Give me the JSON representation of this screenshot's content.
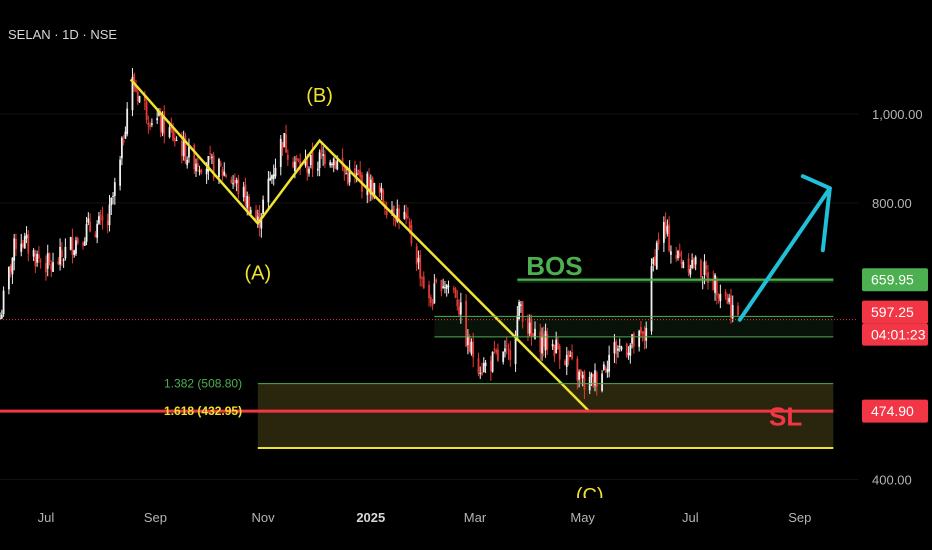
{
  "symbol": "SELAN · 1D · NSE",
  "chart_data": {
    "type": "candlestick",
    "y_scale": "log",
    "ylim": [
      382,
      1330
    ],
    "y_ticks": [
      {
        "value": 1000,
        "label": "1,000.00"
      },
      {
        "value": 800,
        "label": "800.00"
      },
      {
        "value": 400,
        "label": "400.00"
      }
    ],
    "x_ticks": [
      {
        "date": "2024-07-01",
        "label": "Jul",
        "bold": false
      },
      {
        "date": "2024-09-01",
        "label": "Sep",
        "bold": false
      },
      {
        "date": "2024-11-01",
        "label": "Nov",
        "bold": false
      },
      {
        "date": "2025-01-01",
        "label": "2025",
        "bold": true
      },
      {
        "date": "2025-03-01",
        "label": "Mar",
        "bold": false
      },
      {
        "date": "2025-05-01",
        "label": "May",
        "bold": false
      },
      {
        "date": "2025-07-01",
        "label": "Jul",
        "bold": false
      },
      {
        "date": "2025-09-01",
        "label": "Sep",
        "bold": false
      }
    ],
    "price_path": [
      [
        "2024-06-05",
        600
      ],
      [
        "2024-06-15",
        740
      ],
      [
        "2024-06-25",
        700
      ],
      [
        "2024-07-05",
        680
      ],
      [
        "2024-07-15",
        720
      ],
      [
        "2024-07-25",
        750
      ],
      [
        "2024-08-05",
        760
      ],
      [
        "2024-08-12",
        880
      ],
      [
        "2024-08-18",
        1090
      ],
      [
        "2024-08-28",
        1000
      ],
      [
        "2024-09-08",
        960
      ],
      [
        "2024-09-20",
        900
      ],
      [
        "2024-10-01",
        880
      ],
      [
        "2024-10-12",
        860
      ],
      [
        "2024-10-22",
        810
      ],
      [
        "2024-10-29",
        760
      ],
      [
        "2024-11-06",
        860
      ],
      [
        "2024-11-12",
        940
      ],
      [
        "2024-11-20",
        880
      ],
      [
        "2024-11-30",
        880
      ],
      [
        "2024-12-08",
        910
      ],
      [
        "2024-12-18",
        860
      ],
      [
        "2024-12-30",
        840
      ],
      [
        "2025-01-10",
        800
      ],
      [
        "2025-01-20",
        770
      ],
      [
        "2025-01-27",
        700
      ],
      [
        "2025-02-03",
        620
      ],
      [
        "2025-02-10",
        660
      ],
      [
        "2025-02-18",
        640
      ],
      [
        "2025-02-25",
        560
      ],
      [
        "2025-03-05",
        530
      ],
      [
        "2025-03-12",
        540
      ],
      [
        "2025-03-20",
        545
      ],
      [
        "2025-03-27",
        620
      ],
      [
        "2025-04-02",
        570
      ],
      [
        "2025-04-10",
        565
      ],
      [
        "2025-04-18",
        555
      ],
      [
        "2025-04-25",
        530
      ],
      [
        "2025-05-03",
        505
      ],
      [
        "2025-05-10",
        520
      ],
      [
        "2025-05-18",
        555
      ],
      [
        "2025-05-28",
        560
      ],
      [
        "2025-06-05",
        570
      ],
      [
        "2025-06-10",
        690
      ],
      [
        "2025-06-15",
        760
      ],
      [
        "2025-06-22",
        700
      ],
      [
        "2025-07-01",
        690
      ],
      [
        "2025-07-10",
        670
      ],
      [
        "2025-07-20",
        640
      ],
      [
        "2025-07-28",
        597
      ]
    ],
    "wave_lines": [
      {
        "points": [
          [
            "2024-08-18",
            1090
          ],
          [
            "2024-10-29",
            760
          ],
          [
            "2024-12-03",
            935
          ],
          [
            "2025-05-05",
            474
          ]
        ],
        "color": "#f0e230"
      }
    ],
    "wave_labels": [
      {
        "text": "(A)",
        "date": "2024-10-29",
        "price": 660
      },
      {
        "text": "(B)",
        "date": "2024-12-03",
        "price": 1030
      },
      {
        "text": "(C)",
        "date": "2025-05-05",
        "price": 378
      }
    ],
    "levels": [
      {
        "name": "BOS",
        "price": 659.95,
        "from": "2025-03-25",
        "to": "2025-09-20",
        "color": "#4caf50"
      },
      {
        "name": "zone-top",
        "price": 602,
        "from": "2025-02-06",
        "to": "2025-09-20",
        "color": "#4caf50"
      },
      {
        "name": "zone-bottom",
        "price": 572,
        "from": "2025-02-06",
        "to": "2025-09-20",
        "color": "#4caf50"
      },
      {
        "name": "fib-1.382",
        "price": 508.8,
        "from": "2024-10-29",
        "to": "2025-09-20",
        "color": "#4caf50"
      },
      {
        "name": "fib-1.618",
        "price": 432.95,
        "from": "2024-10-29",
        "to": "2025-09-20",
        "color": "#f0e230"
      },
      {
        "name": "SL",
        "price": 474.9,
        "from": "2024-06-01",
        "to": "2025-09-20",
        "color": "#f23645"
      }
    ],
    "current_price": 597.25,
    "forecast_arrow": {
      "from": [
        "2025-07-29",
        597
      ],
      "to": [
        "2025-09-18",
        830
      ],
      "color": "#1fc0d8"
    },
    "annotations": [
      {
        "text": "BOS",
        "date": "2025-04-15",
        "price": 668,
        "color": "#4caf50"
      },
      {
        "text": "SL",
        "date": "2025-08-24",
        "price": 458,
        "color": "#f23645"
      },
      {
        "text": "1.382 (508.80)",
        "date": "2024-09-28",
        "price": 508.8,
        "color": "#4caf50"
      },
      {
        "text": "1.618 (432.95)",
        "date": "2024-09-28",
        "price": 474.9,
        "color": "#f0e230"
      }
    ],
    "price_badges": [
      {
        "text": "659.95",
        "price": 659.95,
        "color": "#4caf50"
      },
      {
        "text": "597.25",
        "price": 597.25,
        "color": "#f23645"
      },
      {
        "text": "04:01:23",
        "price": 554,
        "color": "#f23645"
      },
      {
        "text": "474.90",
        "price": 474.9,
        "color": "#f23645"
      }
    ]
  }
}
